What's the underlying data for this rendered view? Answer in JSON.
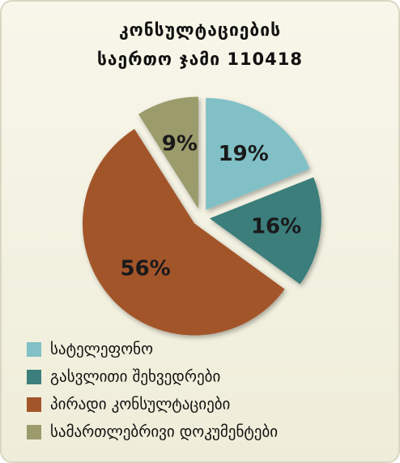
{
  "chart_data": {
    "type": "pie",
    "title": "კონსულტაციების",
    "subtitle": "საერთო ჯამი 110418",
    "categories": [
      "სატელეფონო",
      "გასვლითი შეხვედრები",
      "პირადი კონსულტაციები",
      "სამართლებრივი დოკუმენტები"
    ],
    "values": [
      19,
      16,
      56,
      9
    ],
    "value_labels": [
      "19%",
      "16%",
      "56%",
      "9%"
    ],
    "colors": [
      "#80c0c6",
      "#3b7e7c",
      "#a3552a",
      "#9b9b6c"
    ],
    "legend": "bottom"
  }
}
